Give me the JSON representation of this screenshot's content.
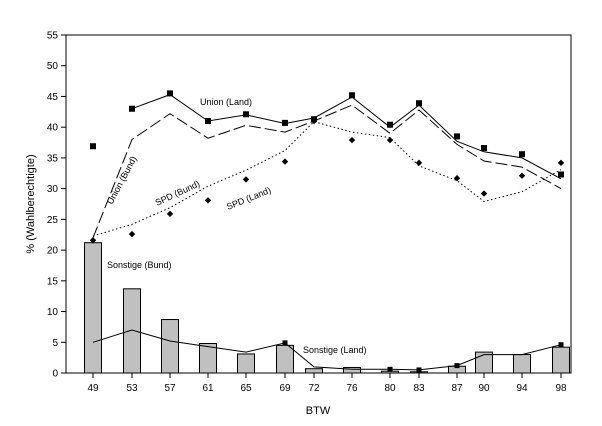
{
  "chart_data": {
    "type": "line",
    "xlabel": "BTW",
    "ylabel": "% (Wahlberechtigte)",
    "ylim": [
      0,
      55
    ],
    "yticks": [
      0,
      5,
      10,
      15,
      20,
      25,
      30,
      35,
      40,
      45,
      50,
      55
    ],
    "categories": [
      "49",
      "53",
      "57",
      "61",
      "65",
      "69",
      "72",
      "76",
      "80",
      "83",
      "87",
      "90",
      "94",
      "98"
    ],
    "series": [
      {
        "name": "Union (Land)",
        "kind": "markers-square",
        "values": [
          36.9,
          43.0,
          45.5,
          41.0,
          42.1,
          40.7,
          41.3,
          45.2,
          40.4,
          43.9,
          38.5,
          36.6,
          35.6,
          32.3
        ]
      },
      {
        "name": "Union (Land)",
        "kind": "solid-line",
        "values": [
          null,
          43.0,
          45.3,
          41.0,
          42.0,
          40.6,
          41.5,
          44.9,
          40.0,
          43.6,
          37.7,
          36.0,
          35.0,
          31.6
        ]
      },
      {
        "name": "Union (Bund)",
        "kind": "dashed-line",
        "values": [
          22.0,
          38.0,
          42.2,
          38.2,
          40.3,
          39.2,
          41.0,
          43.6,
          39.0,
          42.8,
          37.2,
          34.5,
          33.5,
          30.0
        ]
      },
      {
        "name": "SPD (Land)",
        "kind": "markers-diamond",
        "values": [
          21.6,
          22.6,
          25.9,
          28.1,
          31.5,
          34.4,
          41.0,
          37.9,
          37.9,
          34.2,
          31.7,
          29.2,
          32.1,
          34.2
        ]
      },
      {
        "name": "SPD (Bund)",
        "kind": "dotted-line",
        "values": [
          22.3,
          24.2,
          26.9,
          30.4,
          33.0,
          36.2,
          40.9,
          39.2,
          38.3,
          33.7,
          31.3,
          27.9,
          29.5,
          33.1
        ]
      },
      {
        "name": "Sonstige (Bund)",
        "kind": "bars",
        "values": [
          21.2,
          13.7,
          8.7,
          4.8,
          3.1,
          4.5,
          0.7,
          0.9,
          0.3,
          0.2,
          1.1,
          3.4,
          3.0,
          4.2
        ]
      },
      {
        "name": "Sonstige (Land)",
        "kind": "solid-line-markers",
        "values": [
          5.0,
          7.0,
          5.2,
          4.3,
          3.4,
          4.9,
          1.0,
          0.6,
          0.6,
          0.5,
          1.2,
          3.0,
          3.0,
          4.6
        ]
      }
    ],
    "annotations": [
      {
        "text": "Union (Land)"
      },
      {
        "text": "Union (Bund)"
      },
      {
        "text": "SPD (Bund)"
      },
      {
        "text": "SPD (Land)"
      },
      {
        "text": "Sonstige (Bund)"
      },
      {
        "text": "Sonstige (Land)"
      }
    ],
    "grid": false,
    "legend": "none"
  }
}
